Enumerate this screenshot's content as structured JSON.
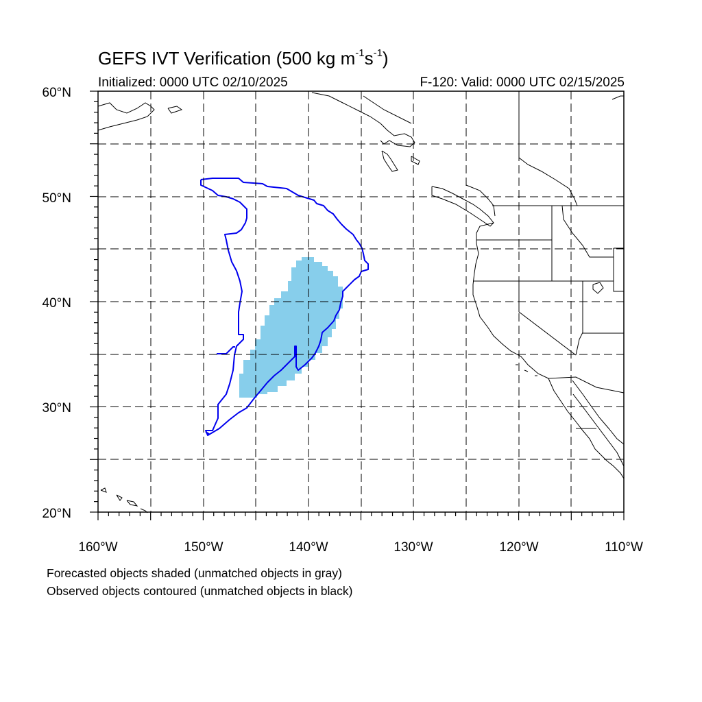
{
  "title": {
    "prefix": "GEFS IVT Verification (500 kg m",
    "exp1": "-1",
    "mid": "s",
    "exp2": "-1",
    "suffix": ")"
  },
  "initialized": "Initialized: 0000 UTC 02/10/2025",
  "valid": "F-120: Valid: 0000 UTC 02/15/2025",
  "notes": [
    "Forecasted objects shaded (unmatched objects in gray)",
    "Observed objects contoured (unmatched objects in black)"
  ],
  "lat_labels": [
    "60°N",
    "50°N",
    "40°N",
    "30°N",
    "20°N"
  ],
  "lon_labels": [
    "160°W",
    "150°W",
    "140°W",
    "130°W",
    "120°W",
    "110°W"
  ],
  "map": {
    "lat_range": [
      20,
      60
    ],
    "lon_range": [
      -160,
      -110
    ],
    "gridline_spacing_deg": 5,
    "gridline_style": "dashed",
    "forecast_object_color": "#87CEEB",
    "observed_contour_color": "#0000EE",
    "coastline_color": "#000000"
  }
}
